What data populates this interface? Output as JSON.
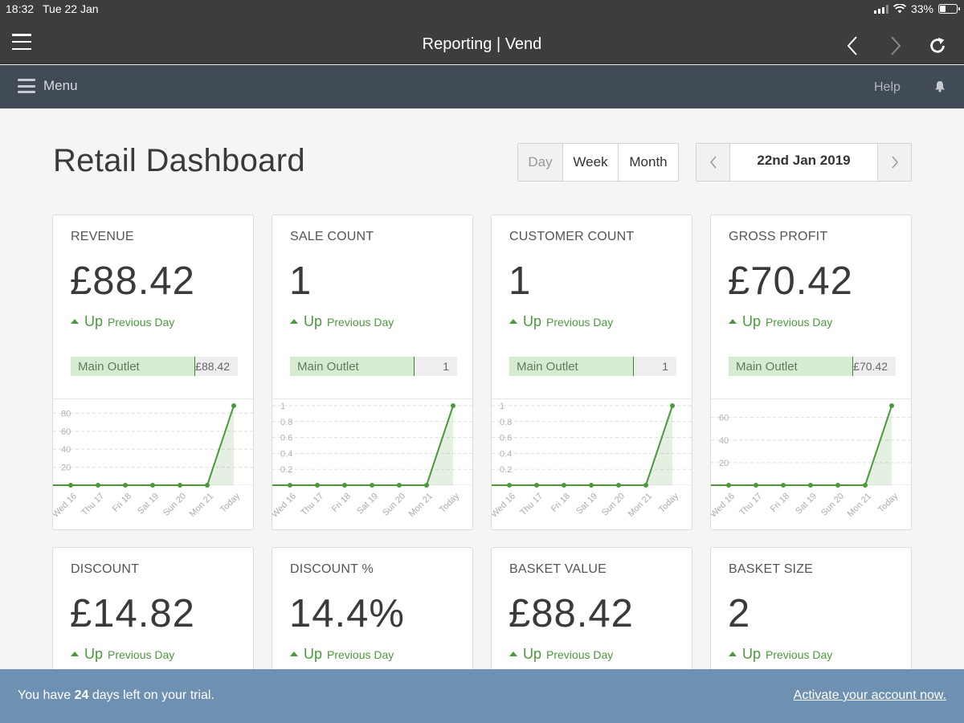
{
  "status": {
    "time": "18:32",
    "date": "Tue 22 Jan",
    "battery": "33%"
  },
  "browser": {
    "title": "Reporting | Vend"
  },
  "appbar": {
    "menu_label": "Menu",
    "help_label": "Help"
  },
  "page": {
    "title": "Retail Dashboard"
  },
  "period_tabs": {
    "day": "Day",
    "week": "Week",
    "month": "Month",
    "selected": "Day"
  },
  "date_picker": {
    "label": "22nd Jan 2019"
  },
  "chart_x_labels": [
    "Wed 16",
    "Thu 17",
    "Fri 18",
    "Sat 19",
    "Sun 20",
    "Mon 21",
    "Today"
  ],
  "cards": [
    {
      "title": "REVENUE",
      "value": "£88.42",
      "trend": "Up",
      "trend_suffix": "Previous Day",
      "outlet_name": "Main Outlet",
      "outlet_value": "£88.42",
      "chart_data": {
        "type": "area",
        "x": [
          "Wed 16",
          "Thu 17",
          "Fri 18",
          "Sat 19",
          "Sun 20",
          "Mon 21",
          "Today"
        ],
        "values": [
          0,
          0,
          0,
          0,
          0,
          0,
          88.42
        ],
        "ylim": [
          0,
          88.42
        ],
        "yticks": [
          "80",
          "60",
          "40",
          "20"
        ]
      }
    },
    {
      "title": "SALE COUNT",
      "value": "1",
      "trend": "Up",
      "trend_suffix": "Previous Day",
      "outlet_name": "Main Outlet",
      "outlet_value": "1",
      "chart_data": {
        "type": "area",
        "x": [
          "Wed 16",
          "Thu 17",
          "Fri 18",
          "Sat 19",
          "Sun 20",
          "Mon 21",
          "Today"
        ],
        "values": [
          0,
          0,
          0,
          0,
          0,
          0,
          1
        ],
        "ylim": [
          0,
          1
        ],
        "yticks": [
          "1",
          "0.8",
          "0.6",
          "0.4",
          "0.2"
        ]
      }
    },
    {
      "title": "CUSTOMER COUNT",
      "value": "1",
      "trend": "Up",
      "trend_suffix": "Previous Day",
      "outlet_name": "Main Outlet",
      "outlet_value": "1",
      "chart_data": {
        "type": "area",
        "x": [
          "Wed 16",
          "Thu 17",
          "Fri 18",
          "Sat 19",
          "Sun 20",
          "Mon 21",
          "Today"
        ],
        "values": [
          0,
          0,
          0,
          0,
          0,
          0,
          1
        ],
        "ylim": [
          0,
          1
        ],
        "yticks": [
          "1",
          "0.8",
          "0.6",
          "0.4",
          "0.2"
        ]
      }
    },
    {
      "title": "GROSS PROFIT",
      "value": "£70.42",
      "trend": "Up",
      "trend_suffix": "Previous Day",
      "outlet_name": "Main Outlet",
      "outlet_value": "£70.42",
      "chart_data": {
        "type": "area",
        "x": [
          "Wed 16",
          "Thu 17",
          "Fri 18",
          "Sat 19",
          "Sun 20",
          "Mon 21",
          "Today"
        ],
        "values": [
          0,
          0,
          0,
          0,
          0,
          0,
          70.42
        ],
        "ylim": [
          0,
          70.42
        ],
        "yticks": [
          "60",
          "40",
          "20"
        ]
      }
    },
    {
      "title": "DISCOUNT",
      "value": "£14.82",
      "trend": "Up",
      "trend_suffix": "Previous Day"
    },
    {
      "title": "DISCOUNT %",
      "value": "14.4%",
      "trend": "Up",
      "trend_suffix": "Previous Day"
    },
    {
      "title": "BASKET VALUE",
      "value": "£88.42",
      "trend": "Up",
      "trend_suffix": "Previous Day"
    },
    {
      "title": "BASKET SIZE",
      "value": "2",
      "trend": "Up",
      "trend_suffix": "Previous Day"
    }
  ],
  "trial": {
    "prefix": "You have",
    "days": "24",
    "suffix": "days left on your trial.",
    "activate_link": "Activate your account now."
  },
  "colors": {
    "accent_green": "#4a9a3c",
    "appbar": "#414b55",
    "trial_bar": "#6e90b1"
  }
}
